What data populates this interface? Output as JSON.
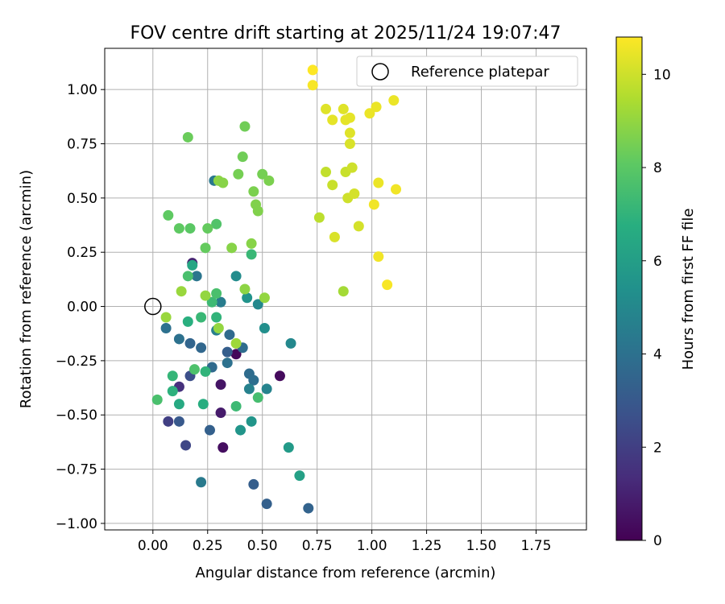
{
  "chart_data": {
    "type": "scatter",
    "title": "FOV centre drift starting at 2025/11/24 19:07:47",
    "xlabel": "Angular distance from reference (arcmin)",
    "ylabel": "Rotation from reference (arcmin)",
    "xlim": [
      -0.22,
      1.98
    ],
    "ylim": [
      -1.03,
      1.19
    ],
    "xticks": [
      0.0,
      0.25,
      0.5,
      0.75,
      1.0,
      1.25,
      1.5,
      1.75
    ],
    "xtick_labels": [
      "0.00",
      "0.25",
      "0.50",
      "0.75",
      "1.00",
      "1.25",
      "1.50",
      "1.75"
    ],
    "yticks": [
      -1.0,
      -0.75,
      -0.5,
      -0.25,
      0.0,
      0.25,
      0.5,
      0.75,
      1.0
    ],
    "ytick_labels": [
      "−1.00",
      "−0.75",
      "−0.50",
      "−0.25",
      "0.00",
      "0.25",
      "0.50",
      "0.75",
      "1.00"
    ],
    "grid": true,
    "legend": {
      "placement": "top-right",
      "label": "Reference platepar"
    },
    "reference_point": {
      "x": 0.0,
      "y": 0.0
    },
    "colorbar": {
      "label": "Hours from first FF file",
      "min": 0,
      "max": 10.8,
      "ticks": [
        0,
        2,
        4,
        6,
        8,
        10
      ],
      "tick_labels": [
        "0",
        "2",
        "4",
        "6",
        "8",
        "10"
      ]
    },
    "points": [
      [
        0.38,
        -0.22,
        0.2
      ],
      [
        0.58,
        -0.32,
        0.3
      ],
      [
        0.32,
        -0.65,
        0.4
      ],
      [
        0.31,
        -0.36,
        0.6
      ],
      [
        0.31,
        -0.49,
        0.8
      ],
      [
        0.18,
        0.2,
        1.0
      ],
      [
        0.12,
        -0.37,
        1.5
      ],
      [
        0.07,
        -0.53,
        2.0
      ],
      [
        0.15,
        -0.64,
        2.3
      ],
      [
        0.17,
        -0.32,
        2.6
      ],
      [
        0.12,
        -0.53,
        3.0
      ],
      [
        0.34,
        -0.21,
        3.2
      ],
      [
        0.26,
        -0.57,
        3.3
      ],
      [
        0.17,
        -0.17,
        3.5
      ],
      [
        0.22,
        -0.19,
        3.6
      ],
      [
        0.27,
        -0.28,
        3.7
      ],
      [
        0.35,
        -0.13,
        3.7
      ],
      [
        0.41,
        -0.19,
        3.8
      ],
      [
        0.44,
        -0.31,
        3.8
      ],
      [
        0.46,
        -0.34,
        3.9
      ],
      [
        0.34,
        -0.26,
        4.0
      ],
      [
        0.46,
        -0.82,
        3.2
      ],
      [
        0.52,
        -0.91,
        3.3
      ],
      [
        0.71,
        -0.93,
        3.4
      ],
      [
        0.12,
        -0.15,
        4.0
      ],
      [
        0.06,
        -0.1,
        4.0
      ],
      [
        0.2,
        0.14,
        4.2
      ],
      [
        0.28,
        0.58,
        4.3
      ],
      [
        0.31,
        0.02,
        4.5
      ],
      [
        0.29,
        -0.11,
        4.6
      ],
      [
        0.44,
        -0.38,
        4.7
      ],
      [
        0.52,
        -0.38,
        4.8
      ],
      [
        0.22,
        -0.81,
        4.4
      ],
      [
        0.63,
        -0.17,
        5.0
      ],
      [
        0.48,
        0.01,
        5.0
      ],
      [
        0.51,
        -0.1,
        5.3
      ],
      [
        0.38,
        0.14,
        5.2
      ],
      [
        0.43,
        0.04,
        5.5
      ],
      [
        0.45,
        -0.53,
        5.6
      ],
      [
        0.4,
        -0.57,
        5.6
      ],
      [
        0.62,
        -0.65,
        5.8
      ],
      [
        0.67,
        -0.78,
        6.1
      ],
      [
        0.18,
        0.19,
        6.4
      ],
      [
        0.12,
        -0.45,
        6.5
      ],
      [
        0.23,
        -0.45,
        6.7
      ],
      [
        0.16,
        -0.07,
        6.8
      ],
      [
        0.09,
        -0.39,
        6.9
      ],
      [
        0.29,
        -0.05,
        7.0
      ],
      [
        0.24,
        -0.3,
        7.0
      ],
      [
        0.09,
        -0.32,
        7.1
      ],
      [
        0.22,
        -0.05,
        7.2
      ],
      [
        0.38,
        -0.46,
        7.3
      ],
      [
        0.48,
        -0.42,
        7.5
      ],
      [
        0.27,
        0.02,
        7.3
      ],
      [
        0.16,
        0.14,
        7.6
      ],
      [
        0.29,
        0.06,
        7.6
      ],
      [
        0.19,
        -0.29,
        7.7
      ],
      [
        0.02,
        -0.43,
        7.6
      ],
      [
        0.45,
        0.24,
        7.2
      ],
      [
        0.29,
        0.38,
        7.8
      ],
      [
        0.17,
        0.36,
        8.0
      ],
      [
        0.12,
        0.36,
        8.1
      ],
      [
        0.07,
        0.42,
        8.1
      ],
      [
        0.24,
        0.27,
        8.2
      ],
      [
        0.25,
        0.36,
        8.2
      ],
      [
        0.16,
        0.78,
        8.3
      ],
      [
        0.41,
        0.69,
        8.4
      ],
      [
        0.42,
        0.83,
        8.4
      ],
      [
        0.39,
        0.61,
        8.5
      ],
      [
        0.5,
        0.61,
        8.5
      ],
      [
        0.53,
        0.58,
        8.6
      ],
      [
        0.46,
        0.53,
        8.6
      ],
      [
        0.47,
        0.47,
        8.7
      ],
      [
        0.48,
        0.44,
        8.7
      ],
      [
        0.45,
        0.29,
        8.8
      ],
      [
        0.36,
        0.27,
        8.8
      ],
      [
        0.42,
        0.08,
        8.9
      ],
      [
        0.51,
        0.04,
        9.0
      ],
      [
        0.24,
        0.05,
        9.0
      ],
      [
        0.13,
        0.07,
        9.1
      ],
      [
        0.06,
        -0.05,
        9.1
      ],
      [
        0.38,
        -0.17,
        9.2
      ],
      [
        0.3,
        0.58,
        8.9
      ],
      [
        0.32,
        0.57,
        8.8
      ],
      [
        0.3,
        -0.1,
        9.0
      ],
      [
        0.87,
        0.07,
        9.3
      ],
      [
        0.76,
        0.41,
        9.7
      ],
      [
        0.79,
        0.62,
        9.8
      ],
      [
        0.82,
        0.56,
        9.9
      ],
      [
        0.88,
        0.62,
        9.9
      ],
      [
        0.91,
        0.64,
        10.0
      ],
      [
        0.89,
        0.5,
        10.0
      ],
      [
        0.92,
        0.52,
        10.1
      ],
      [
        0.94,
        0.37,
        10.1
      ],
      [
        0.83,
        0.32,
        10.2
      ],
      [
        0.9,
        0.75,
        10.2
      ],
      [
        0.9,
        0.8,
        10.3
      ],
      [
        0.87,
        0.91,
        10.3
      ],
      [
        0.9,
        0.87,
        10.4
      ],
      [
        0.88,
        0.86,
        10.4
      ],
      [
        0.82,
        0.86,
        10.4
      ],
      [
        0.79,
        0.91,
        10.3
      ],
      [
        0.99,
        0.89,
        10.5
      ],
      [
        1.02,
        0.92,
        10.5
      ],
      [
        1.1,
        0.95,
        10.5
      ],
      [
        1.03,
        0.57,
        10.5
      ],
      [
        1.01,
        0.47,
        10.6
      ],
      [
        1.11,
        0.54,
        10.6
      ],
      [
        1.03,
        0.23,
        10.6
      ],
      [
        1.07,
        0.1,
        10.7
      ],
      [
        0.73,
        1.02,
        10.7
      ],
      [
        0.73,
        1.09,
        10.8
      ]
    ]
  }
}
